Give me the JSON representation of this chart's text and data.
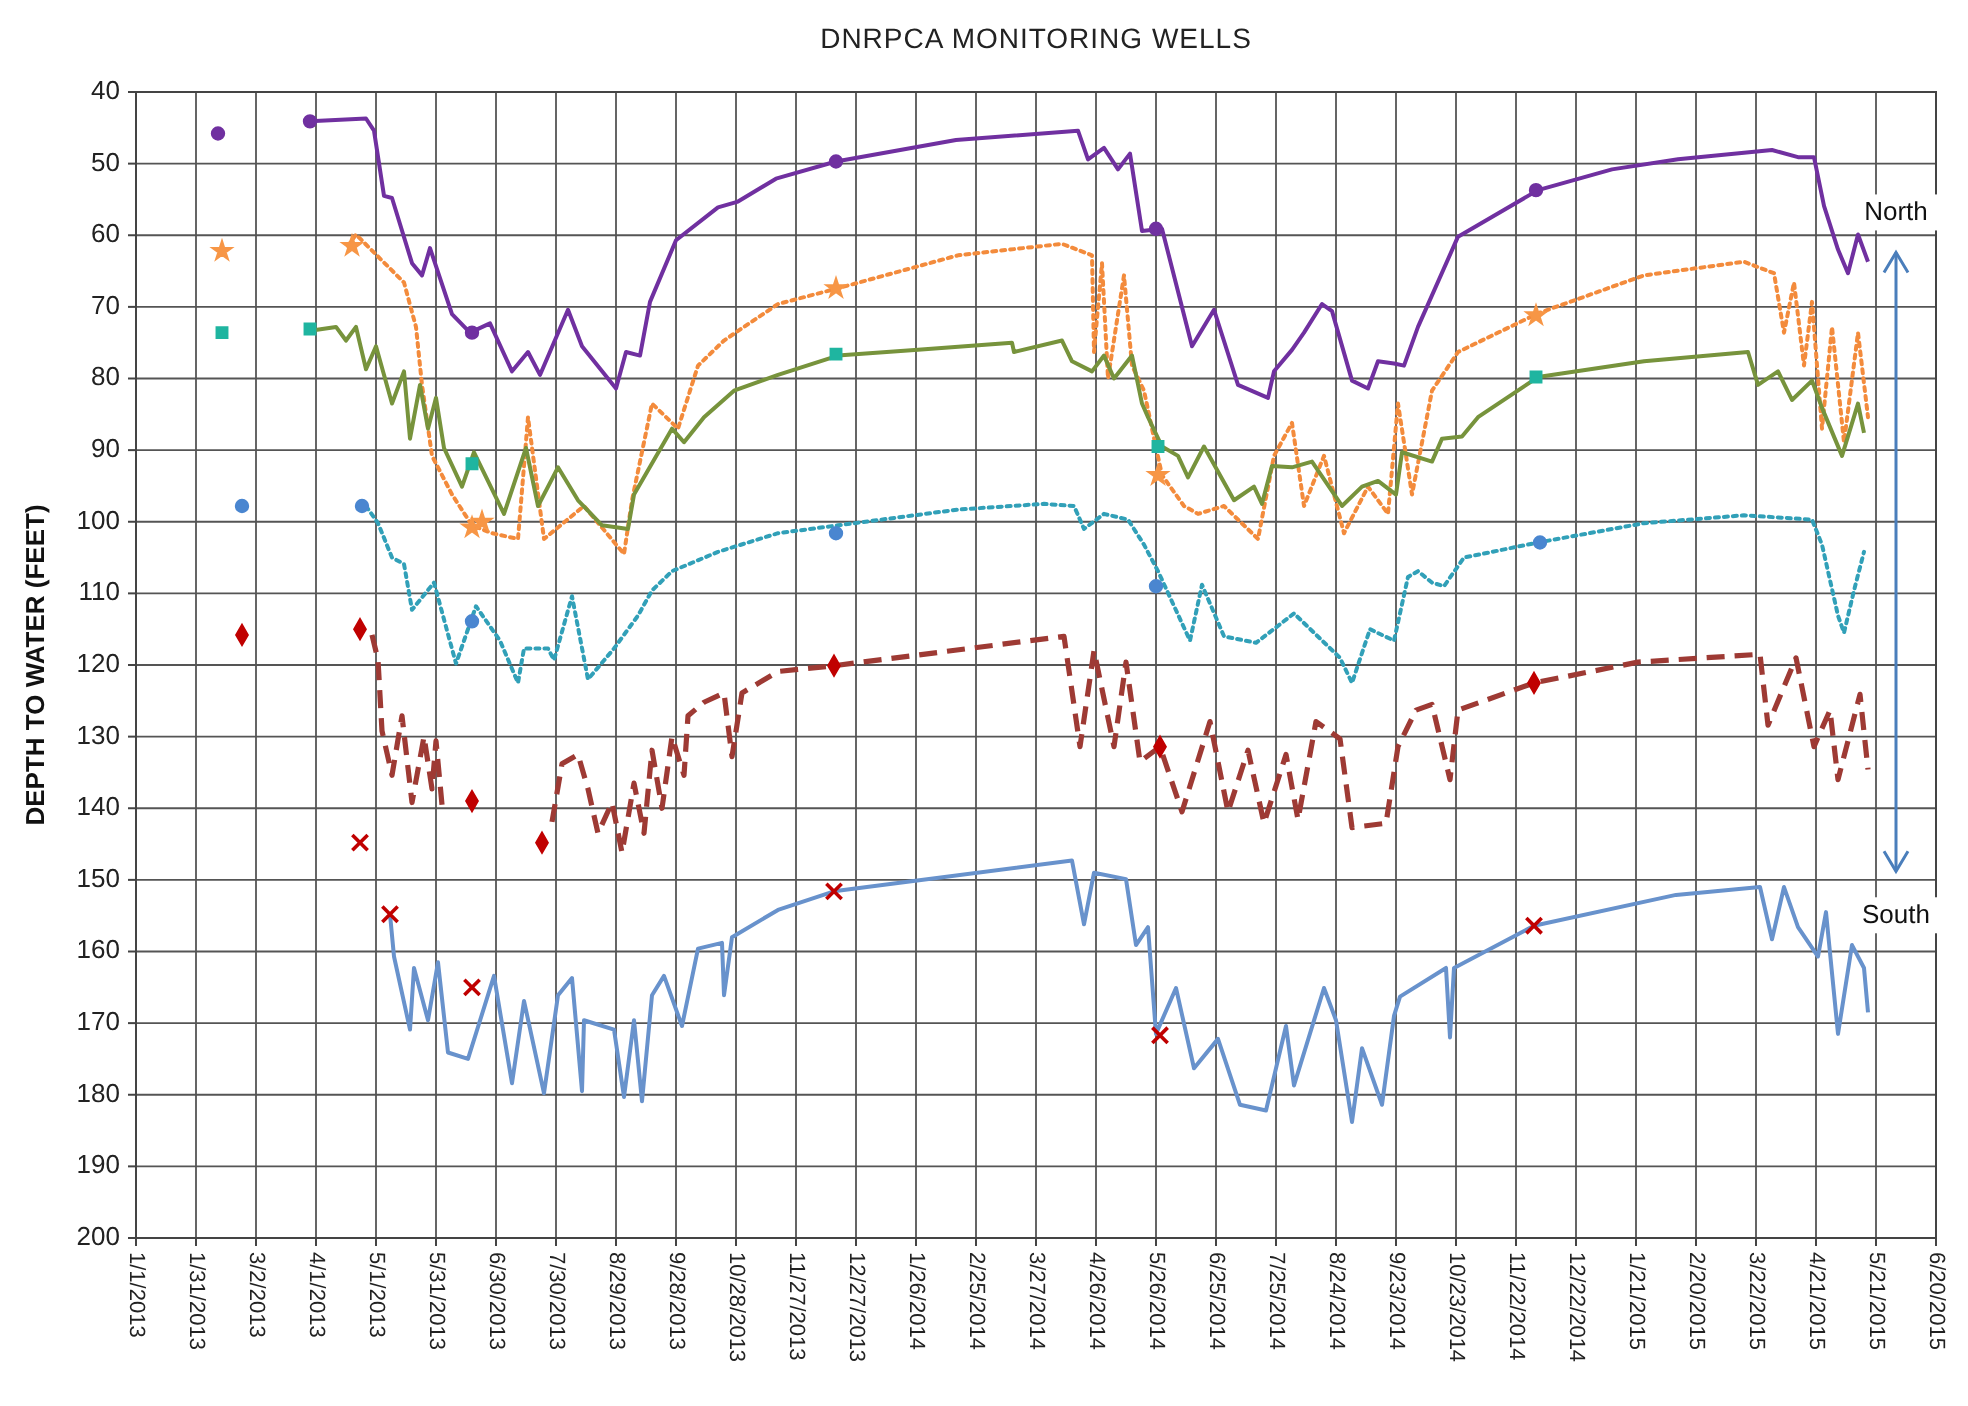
{
  "chart_data": {
    "type": "line",
    "title": "DNRPCA MONITORING WELLS",
    "ylabel": "DEPTH TO WATER (FEET)",
    "xlim": [
      "2013-01-01",
      "2015-06-20"
    ],
    "xticks": [
      {
        "value": "2013-01-01",
        "label": "1/1/2013"
      },
      {
        "value": "2013-01-31",
        "label": "1/31/2013"
      },
      {
        "value": "2013-03-02",
        "label": "3/2/2013"
      },
      {
        "value": "2013-04-01",
        "label": "4/1/2013"
      },
      {
        "value": "2013-05-01",
        "label": "5/1/2013"
      },
      {
        "value": "2013-05-31",
        "label": "5/31/2013"
      },
      {
        "value": "2013-06-30",
        "label": "6/30/2013"
      },
      {
        "value": "2013-07-30",
        "label": "7/30/2013"
      },
      {
        "value": "2013-08-29",
        "label": "8/29/2013"
      },
      {
        "value": "2013-09-28",
        "label": "9/28/2013"
      },
      {
        "value": "2013-10-28",
        "label": "10/28/2013"
      },
      {
        "value": "2013-11-27",
        "label": "11/27/2013"
      },
      {
        "value": "2013-12-27",
        "label": "12/27/2013"
      },
      {
        "value": "2014-01-26",
        "label": "1/26/2014"
      },
      {
        "value": "2014-02-25",
        "label": "2/25/2014"
      },
      {
        "value": "2014-03-27",
        "label": "3/27/2014"
      },
      {
        "value": "2014-04-26",
        "label": "4/26/2014"
      },
      {
        "value": "2014-05-26",
        "label": "5/26/2014"
      },
      {
        "value": "2014-06-25",
        "label": "6/25/2014"
      },
      {
        "value": "2014-07-25",
        "label": "7/25/2014"
      },
      {
        "value": "2014-08-24",
        "label": "8/24/2014"
      },
      {
        "value": "2014-09-23",
        "label": "9/23/2014"
      },
      {
        "value": "2014-10-23",
        "label": "10/23/2014"
      },
      {
        "value": "2014-11-22",
        "label": "11/22/2014"
      },
      {
        "value": "2014-12-22",
        "label": "12/22/2014"
      },
      {
        "value": "2015-01-21",
        "label": "1/21/2015"
      },
      {
        "value": "2015-02-20",
        "label": "2/20/2015"
      },
      {
        "value": "2015-03-22",
        "label": "3/22/2015"
      },
      {
        "value": "2015-04-21",
        "label": "4/21/2015"
      },
      {
        "value": "2015-05-21",
        "label": "5/21/2015"
      },
      {
        "value": "2015-06-20",
        "label": "6/20/2015"
      }
    ],
    "ylim": [
      200,
      40
    ],
    "yticks": [
      40,
      50,
      60,
      70,
      80,
      90,
      100,
      110,
      120,
      130,
      140,
      150,
      160,
      170,
      180,
      190,
      200
    ],
    "grid": true,
    "annotations": [
      "North",
      "South"
    ],
    "series": [
      {
        "color": "#7030a0",
        "line_style": "solid",
        "marker": "none",
        "x": [
          "2013-03-29",
          "2013-04-26",
          "2013-04-30",
          "2013-05-05",
          "2013-05-09",
          "2013-05-19",
          "2013-05-24",
          "2013-05-28",
          "2013-06-08",
          "2013-06-17",
          "2013-06-27",
          "2013-07-08",
          "2013-07-16",
          "2013-07-22",
          "2013-08-05",
          "2013-08-12",
          "2013-08-29",
          "2013-09-03",
          "2013-09-10",
          "2013-09-15",
          "2013-09-28",
          "2013-10-19",
          "2013-10-29",
          "2013-11-17",
          "2013-12-17",
          "2014-02-15",
          "2014-04-17",
          "2014-04-22",
          "2014-04-30",
          "2014-05-07",
          "2014-05-13",
          "2014-05-19",
          "2014-05-29",
          "2014-06-13",
          "2014-06-24",
          "2014-07-06",
          "2014-07-21",
          "2014-07-24",
          "2014-08-02",
          "2014-08-08",
          "2014-08-17",
          "2014-08-22",
          "2014-09-01",
          "2014-09-09",
          "2014-09-14",
          "2014-09-22",
          "2014-09-27",
          "2014-10-04",
          "2014-10-24",
          "2014-12-03",
          "2015-01-09",
          "2015-02-11",
          "2015-03-30",
          "2015-04-12",
          "2015-04-20",
          "2015-04-25",
          "2015-05-02",
          "2015-05-07",
          "2015-05-12",
          "2015-05-17"
        ],
        "values": [
          44.1,
          43.7,
          45.4,
          54.5,
          54.8,
          63.9,
          65.6,
          61.8,
          71,
          73.6,
          72.3,
          79,
          76.3,
          79.5,
          70.4,
          75.5,
          81.4,
          76.3,
          76.8,
          69.3,
          60.7,
          56.1,
          55.3,
          52.1,
          49.7,
          46.7,
          45.4,
          49.4,
          47.8,
          50.8,
          48.6,
          59.4,
          59.1,
          75.5,
          70.4,
          80.9,
          82.7,
          79,
          76,
          73.6,
          69.6,
          70.6,
          80.3,
          81.4,
          77.6,
          77.9,
          78.2,
          72.8,
          60.2,
          53.7,
          50.8,
          49.4,
          48.1,
          49.1,
          49.1,
          55.9,
          62,
          65.3,
          59.9,
          63.7
        ]
      },
      {
        "color": "#f38b3c",
        "line_style": "dotted",
        "marker": "none",
        "x": [
          "2013-04-17",
          "2013-04-21",
          "2013-05-15",
          "2013-05-21",
          "2013-05-24",
          "2013-05-29",
          "2013-06-08",
          "2013-06-18",
          "2013-06-28",
          "2013-07-11",
          "2013-07-16",
          "2013-07-24",
          "2013-08-13",
          "2013-09-02",
          "2013-09-06",
          "2013-09-16",
          "2013-09-29",
          "2013-10-09",
          "2013-10-22",
          "2013-11-01",
          "2013-11-18",
          "2013-12-18",
          "2014-02-16",
          "2014-04-09",
          "2014-04-24",
          "2014-04-25",
          "2014-04-29",
          "2014-05-02",
          "2014-05-10",
          "2014-05-14",
          "2014-05-20",
          "2014-05-24",
          "2014-05-29",
          "2014-06-09",
          "2014-06-16",
          "2014-06-29",
          "2014-07-16",
          "2014-07-24",
          "2014-08-02",
          "2014-08-08",
          "2014-08-18",
          "2014-08-28",
          "2014-09-09",
          "2014-09-19",
          "2014-09-24",
          "2014-10-01",
          "2014-10-11",
          "2014-10-24",
          "2014-12-03",
          "2015-01-25",
          "2015-03-16",
          "2015-03-31",
          "2015-04-05",
          "2015-04-10",
          "2015-04-15",
          "2015-04-19",
          "2015-04-24",
          "2015-04-29",
          "2015-05-05",
          "2015-05-12",
          "2015-05-17"
        ],
        "values": [
          61.5,
          59.9,
          66.6,
          72.8,
          80.9,
          90.8,
          96.2,
          100.5,
          101.6,
          102.4,
          85.4,
          102.4,
          97.8,
          104.5,
          97,
          83.5,
          87,
          78.2,
          74.7,
          72.8,
          69.6,
          67.4,
          62.8,
          61.2,
          62.8,
          76.3,
          63.9,
          80,
          65.6,
          78.2,
          81.7,
          87,
          93.5,
          97.8,
          98.9,
          97.8,
          102.4,
          90.8,
          86.2,
          97.8,
          90.8,
          101.6,
          95.1,
          98.9,
          83.5,
          96.2,
          81.7,
          76.3,
          70.9,
          65.6,
          63.7,
          65.3,
          73.6,
          66.6,
          78.2,
          69.3,
          87,
          72.8,
          88.9,
          73.6,
          85.4
        ]
      },
      {
        "color": "#77933c",
        "line_style": "solid",
        "marker": "none",
        "x": [
          "2013-03-30",
          "2013-04-11",
          "2013-04-16",
          "2013-04-21",
          "2013-04-26",
          "2013-05-01",
          "2013-05-09",
          "2013-05-15",
          "2013-05-18",
          "2013-05-23",
          "2013-05-27",
          "2013-05-31",
          "2013-06-04",
          "2013-06-13",
          "2013-06-19",
          "2013-07-04",
          "2013-07-15",
          "2013-07-21",
          "2013-07-31",
          "2013-08-10",
          "2013-08-22",
          "2013-09-04",
          "2013-09-07",
          "2013-09-26",
          "2013-10-02",
          "2013-10-12",
          "2013-10-27",
          "2013-11-18",
          "2013-12-18",
          "2014-01-27",
          "2014-03-15",
          "2014-03-16",
          "2014-04-09",
          "2014-04-14",
          "2014-04-24",
          "2014-04-30",
          "2014-05-05",
          "2014-05-14",
          "2014-05-19",
          "2014-05-22",
          "2014-05-29",
          "2014-06-06",
          "2014-06-11",
          "2014-06-19",
          "2014-07-04",
          "2014-07-14",
          "2014-07-18",
          "2014-07-23",
          "2014-08-02",
          "2014-08-12",
          "2014-08-27",
          "2014-09-06",
          "2014-09-14",
          "2014-09-23",
          "2014-09-26",
          "2014-10-11",
          "2014-10-16",
          "2014-10-26",
          "2014-11-03",
          "2014-12-03",
          "2015-01-25",
          "2015-03-18",
          "2015-03-23",
          "2015-04-02",
          "2015-04-09",
          "2015-04-19",
          "2015-04-24",
          "2015-05-04",
          "2015-05-12",
          "2015-05-15"
        ],
        "values": [
          73.3,
          72.8,
          74.7,
          72.8,
          78.7,
          75.5,
          83.5,
          79,
          88.4,
          80.9,
          87,
          82.7,
          89.7,
          95.1,
          90.3,
          98.9,
          89.7,
          97.8,
          92.4,
          97,
          100.5,
          101,
          96.2,
          87,
          88.9,
          85.4,
          81.7,
          79.5,
          76.8,
          76,
          75,
          76.3,
          74.7,
          77.6,
          79,
          76.8,
          80,
          76.8,
          83.5,
          85.4,
          89.5,
          90.8,
          93.8,
          89.5,
          97,
          95.1,
          97.5,
          92.2,
          92.4,
          91.6,
          97.8,
          95.1,
          94.3,
          96.2,
          90.3,
          91.6,
          88.4,
          88.1,
          85.4,
          79.8,
          77.6,
          76.3,
          80.9,
          79,
          83,
          80.3,
          84.1,
          90.8,
          83.5,
          87.6
        ]
      },
      {
        "color": "#31a0b8",
        "line_style": "dotted",
        "marker": "none",
        "x": [
          "2013-04-26",
          "2013-05-02",
          "2013-05-09",
          "2013-05-15",
          "2013-05-19",
          "2013-05-30",
          "2013-06-10",
          "2013-06-20",
          "2013-07-02",
          "2013-07-11",
          "2013-07-14",
          "2013-07-26",
          "2013-07-29",
          "2013-08-07",
          "2013-08-15",
          "2013-08-28",
          "2013-09-09",
          "2013-09-16",
          "2013-09-26",
          "2013-10-19",
          "2013-11-18",
          "2013-12-18",
          "2014-02-16",
          "2014-03-31",
          "2014-04-15",
          "2014-04-20",
          "2014-04-30",
          "2014-05-12",
          "2014-05-20",
          "2014-05-27",
          "2014-06-12",
          "2014-06-18",
          "2014-06-29",
          "2014-07-15",
          "2014-08-03",
          "2014-08-26",
          "2014-09-01",
          "2014-09-10",
          "2014-09-22",
          "2014-09-29",
          "2014-10-04",
          "2014-10-11",
          "2014-10-17",
          "2014-10-27",
          "2014-12-03",
          "2015-01-25",
          "2015-03-16",
          "2015-04-19",
          "2015-04-24",
          "2015-05-02",
          "2015-05-05",
          "2015-05-10",
          "2015-05-15"
        ],
        "values": [
          97.8,
          100.2,
          105,
          105.9,
          112.3,
          108.5,
          119.8,
          111.8,
          116.6,
          122.5,
          117.7,
          117.7,
          119.3,
          110.4,
          122,
          117.7,
          113.1,
          109.6,
          106.9,
          104.2,
          101.6,
          100.5,
          98.3,
          97.5,
          97.8,
          101,
          98.9,
          99.7,
          103.2,
          106.9,
          116.6,
          108.8,
          116,
          116.9,
          112.8,
          119,
          122.5,
          115,
          116.6,
          107.7,
          106.9,
          108.5,
          109,
          105,
          102.9,
          100.2,
          99.1,
          99.7,
          103.2,
          113.1,
          115.5,
          109.6,
          104.2
        ]
      },
      {
        "color": "#9e3a34",
        "line_style": "dashed",
        "marker": "none",
        "x": [
          "2013-04-29",
          "2013-05-02",
          "2013-05-04",
          "2013-05-09",
          "2013-05-14",
          "2013-05-19",
          "2013-05-25",
          "2013-05-29",
          "2013-05-31",
          "2013-06-03",
          "2013-06-20",
          "2013-07-28",
          "2013-08-02",
          "2013-08-10",
          "2013-08-15",
          "2013-08-20",
          "2013-08-27",
          "2013-09-01",
          "2013-09-07",
          "2013-09-12",
          "2013-09-16",
          "2013-09-21",
          "2013-09-26",
          "2013-10-02",
          "2013-10-04",
          "2013-10-12",
          "2013-10-22",
          "2013-10-26",
          "2013-10-31",
          "2013-11-18",
          "2013-12-16",
          "2014-04-10",
          "2014-04-18",
          "2014-04-25",
          "2014-05-05",
          "2014-05-11",
          "2014-05-18",
          "2014-05-28",
          "2014-06-08",
          "2014-06-22",
          "2014-07-01",
          "2014-07-11",
          "2014-07-19",
          "2014-07-30",
          "2014-08-05",
          "2014-08-14",
          "2014-08-26",
          "2014-09-01",
          "2014-09-18",
          "2014-09-24",
          "2014-10-03",
          "2014-10-11",
          "2014-10-20",
          "2014-10-24",
          "2014-12-01",
          "2015-01-22",
          "2015-03-24",
          "2015-03-28",
          "2015-04-11",
          "2015-04-20",
          "2015-04-28",
          "2015-05-02",
          "2015-05-13",
          "2015-05-17"
        ],
        "values": [
          115.8,
          119.3,
          129.2,
          135.4,
          127.1,
          139.2,
          130,
          137.3,
          130.6,
          139.5,
          null,
          141.9,
          133.8,
          132.5,
          137.3,
          143.5,
          139.2,
          146.2,
          136.5,
          143.5,
          131.9,
          140,
          130,
          135.4,
          127.1,
          125.2,
          123.9,
          132.8,
          123.9,
          120.9,
          120.1,
          116,
          131.4,
          118,
          131.4,
          119.6,
          133.5,
          131.4,
          140.5,
          127.9,
          140.5,
          131.9,
          142.1,
          132.5,
          141.6,
          127.9,
          130.3,
          142.7,
          142.1,
          131.4,
          126.3,
          125.5,
          136,
          126.3,
          122.5,
          119.6,
          118.5,
          128.4,
          119,
          131.4,
          126.3,
          136,
          124.1,
          134.6
        ]
      },
      {
        "color": "#6892cc",
        "line_style": "solid",
        "marker": "none",
        "x": [
          "2013-05-08",
          "2013-05-10",
          "2013-05-18",
          "2013-05-20",
          "2013-05-27",
          "2013-06-01",
          "2013-06-06",
          "2013-06-16",
          "2013-06-29",
          "2013-07-08",
          "2013-07-14",
          "2013-07-24",
          "2013-07-31",
          "2013-08-07",
          "2013-08-12",
          "2013-08-13",
          "2013-08-28",
          "2013-09-02",
          "2013-09-07",
          "2013-09-11",
          "2013-09-16",
          "2013-09-22",
          "2013-10-01",
          "2013-10-09",
          "2013-10-21",
          "2013-10-22",
          "2013-10-26",
          "2013-11-18",
          "2013-12-16",
          "2014-04-14",
          "2014-04-20",
          "2014-04-25",
          "2014-05-11",
          "2014-05-16",
          "2014-05-22",
          "2014-05-26",
          "2014-06-05",
          "2014-06-14",
          "2014-06-26",
          "2014-07-07",
          "2014-07-20",
          "2014-07-30",
          "2014-08-03",
          "2014-08-18",
          "2014-08-24",
          "2014-09-01",
          "2014-09-06",
          "2014-09-16",
          "2014-09-22",
          "2014-09-25",
          "2014-10-18",
          "2014-10-20",
          "2014-10-22",
          "2014-12-01",
          "2015-02-10",
          "2015-03-24",
          "2015-03-30",
          "2015-04-05",
          "2015-04-12",
          "2015-04-22",
          "2015-04-26",
          "2015-05-02",
          "2015-05-09",
          "2015-05-15",
          "2015-05-17"
        ],
        "values": [
          154.8,
          160.7,
          170.9,
          162.3,
          169.6,
          161.5,
          174.1,
          175,
          163.4,
          178.4,
          166.9,
          179.8,
          166.1,
          163.7,
          179.5,
          169.6,
          170.9,
          180.3,
          169.6,
          180.9,
          166.1,
          163.4,
          170.4,
          159.6,
          158.8,
          166.1,
          158,
          154.2,
          151.6,
          147.3,
          156.2,
          149,
          149.9,
          159.1,
          156.6,
          171.5,
          165.1,
          176.3,
          172.2,
          181.4,
          182.2,
          170.4,
          178.7,
          165.1,
          169.6,
          183.8,
          173.5,
          181.4,
          169,
          166.3,
          162.3,
          172,
          162.3,
          156.4,
          152.1,
          151,
          158.3,
          151,
          156.6,
          160.7,
          154.5,
          171.5,
          159.1,
          162.3,
          168.5
        ]
      },
      {
        "type": "scatter",
        "color": "#7030a0",
        "marker": "circle",
        "x": [
          "2013-02-11",
          "2013-03-29",
          "2013-06-18",
          "2013-12-17",
          "2014-05-26",
          "2014-12-02"
        ],
        "values": [
          45.8,
          44.1,
          73.6,
          49.7,
          59.1,
          53.7
        ]
      },
      {
        "type": "scatter",
        "color": "#f79646",
        "marker": "star",
        "x": [
          "2013-02-13",
          "2013-04-19",
          "2013-06-18",
          "2013-06-23",
          "2013-12-17",
          "2014-05-27",
          "2014-12-02"
        ],
        "values": [
          62.2,
          61.5,
          100.8,
          100,
          67.4,
          93.5,
          71.2
        ]
      },
      {
        "type": "scatter",
        "color": "#1fb5a0",
        "marker": "square",
        "x": [
          "2013-02-13",
          "2013-03-29",
          "2013-06-18",
          "2013-12-17",
          "2014-05-27",
          "2014-12-02"
        ],
        "values": [
          73.6,
          73.1,
          91.9,
          76.6,
          89.5,
          79.8
        ]
      },
      {
        "type": "scatter",
        "color": "#4a86d0",
        "marker": "circle",
        "x": [
          "2013-02-23",
          "2013-04-24",
          "2013-06-18",
          "2013-12-17",
          "2014-05-26",
          "2014-12-04"
        ],
        "values": [
          97.8,
          97.8,
          113.9,
          101.6,
          109,
          102.9
        ]
      },
      {
        "type": "scatter",
        "color": "#c00000",
        "marker": "diamond",
        "x": [
          "2013-02-23",
          "2013-04-23",
          "2013-06-18",
          "2013-07-23",
          "2013-12-16",
          "2014-05-28",
          "2014-12-01"
        ],
        "values": [
          115.8,
          115,
          139,
          144.8,
          120.1,
          131.4,
          122.5
        ]
      },
      {
        "type": "scatter",
        "color": "#c00000",
        "marker": "cross",
        "x": [
          "2013-04-23",
          "2013-05-08",
          "2013-06-18",
          "2013-12-16",
          "2014-05-28",
          "2014-12-01"
        ],
        "values": [
          144.8,
          154.8,
          165,
          151.6,
          171.7,
          156.4
        ]
      }
    ]
  }
}
